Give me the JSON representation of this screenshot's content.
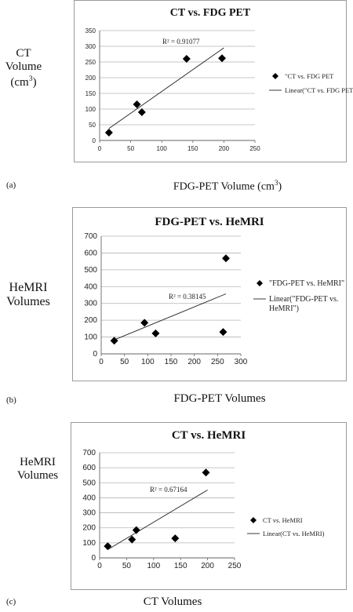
{
  "chart_data": [
    {
      "type": "scatter",
      "panel_label": "(a)",
      "title": "CT vs. FDG PET",
      "ylabel_lines": [
        "CT",
        "Volume",
        "(cm3)"
      ],
      "xlabel": "FDG-PET Volume (cm3)",
      "xlim": [
        0,
        250
      ],
      "xticks": [
        0,
        50,
        100,
        150,
        200,
        250
      ],
      "ylim": [
        0,
        350
      ],
      "yticks": [
        0,
        50,
        100,
        150,
        200,
        250,
        300,
        350
      ],
      "grid": true,
      "series": [
        {
          "name": "\"CT vs. FDG PET",
          "marker": "diamond",
          "x": [
            15,
            60,
            68,
            140,
            197
          ],
          "y": [
            25,
            115,
            90,
            260,
            262
          ]
        }
      ],
      "trendline": {
        "label": "Linear(\"CT vs. FDG PET)",
        "x": [
          15,
          200
        ],
        "y": [
          38,
          295
        ]
      },
      "annotation": "R² = 0.91077",
      "legend": "right"
    },
    {
      "type": "scatter",
      "panel_label": "(b)",
      "title": "FDG-PET vs. HeMRI",
      "ylabel_lines": [
        "HeMRI",
        "Volumes"
      ],
      "xlabel": "FDG-PET Volumes",
      "xlim": [
        0,
        300
      ],
      "xticks": [
        0,
        50,
        100,
        150,
        200,
        250,
        300
      ],
      "ylim": [
        0,
        700
      ],
      "yticks": [
        0,
        100,
        200,
        300,
        400,
        500,
        600,
        700
      ],
      "grid": true,
      "series": [
        {
          "name": "\"FDG-PET vs. HeMRI\"",
          "marker": "diamond",
          "x": [
            28,
            93,
            117,
            262,
            268
          ],
          "y": [
            78,
            185,
            122,
            130,
            568
          ]
        }
      ],
      "trendline": {
        "label_lines": [
          "Linear(\"FDG-PET vs.",
          "HeMRI\")"
        ],
        "x": [
          28,
          268
        ],
        "y": [
          83,
          357
        ]
      },
      "annotation": "R² = 0.38145",
      "legend": "right"
    },
    {
      "type": "scatter",
      "panel_label": "(c)",
      "title": "CT vs. HeMRI",
      "ylabel_lines": [
        "HeMRI",
        "Volumes"
      ],
      "xlabel": "CT Volumes",
      "xlim": [
        0,
        250
      ],
      "xticks": [
        0,
        50,
        100,
        150,
        200,
        250
      ],
      "ylim": [
        0,
        700
      ],
      "yticks": [
        0,
        100,
        200,
        300,
        400,
        500,
        600,
        700
      ],
      "grid": true,
      "series": [
        {
          "name": "CT vs. HeMRI",
          "marker": "diamond",
          "x": [
            15,
            60,
            68,
            140,
            197
          ],
          "y": [
            78,
            122,
            185,
            130,
            568
          ]
        }
      ],
      "trendline": {
        "label": "Linear(CT vs. HeMRI)",
        "x": [
          15,
          200
        ],
        "y": [
          55,
          452
        ]
      },
      "annotation": "R² = 0.67164",
      "legend": "right"
    }
  ]
}
